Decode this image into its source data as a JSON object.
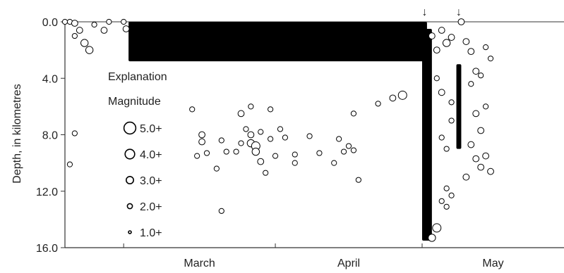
{
  "chart_data": {
    "type": "scatter",
    "title": "",
    "xlabel": "",
    "ylabel": "Depth, in kilometres",
    "x_axis": {
      "categories": [
        "March",
        "April",
        "May"
      ],
      "days_from_march_1": [
        0,
        31,
        61
      ],
      "range_days": [
        -12,
        90
      ]
    },
    "y_axis": {
      "ticks": [
        "0.0",
        "4.0",
        "8.0",
        "12.0",
        "16.0"
      ],
      "tick_values": [
        0,
        4,
        8,
        12,
        16
      ],
      "range": [
        0,
        16
      ],
      "inverted": true
    },
    "grid": false,
    "legend": {
      "placement": "left",
      "title_line1": "Explanation",
      "title_line2": "Magnitude",
      "items": [
        {
          "label": "5.0+",
          "magnitude": 5.0
        },
        {
          "label": "4.0+",
          "magnitude": 4.0
        },
        {
          "label": "3.0+",
          "magnitude": 3.0
        },
        {
          "label": "2.0+",
          "magnitude": 2.0
        },
        {
          "label": "1.0+",
          "magnitude": 1.0
        }
      ]
    },
    "annotations": [
      {
        "type": "arrow",
        "symbol": "↓",
        "day": 61.5
      },
      {
        "type": "arrow",
        "symbol": "↓",
        "day": 68.5
      }
    ],
    "dense_bands": [
      {
        "description": "shallow swarm",
        "day_start": 1,
        "day_end": 62,
        "depth_min": 0.0,
        "depth_max": 2.8
      },
      {
        "description": "deep column 1",
        "day_start": 61,
        "day_end": 63,
        "depth_min": 0.5,
        "depth_max": 15.5
      },
      {
        "description": "deep column 2",
        "day_start": 68,
        "day_end": 69,
        "depth_min": 3.0,
        "depth_max": 9.0
      }
    ],
    "points": [
      {
        "day": -12,
        "depth": 0.0,
        "mag": 2.0
      },
      {
        "day": -11,
        "depth": 0.0,
        "mag": 2.0
      },
      {
        "day": -10,
        "depth": 0.1,
        "mag": 2.5
      },
      {
        "day": -10,
        "depth": 1.0,
        "mag": 2.0
      },
      {
        "day": -9,
        "depth": 0.6,
        "mag": 2.5
      },
      {
        "day": -8,
        "depth": 1.5,
        "mag": 3.0
      },
      {
        "day": -7,
        "depth": 2.0,
        "mag": 3.0
      },
      {
        "day": -6,
        "depth": 0.2,
        "mag": 2.0
      },
      {
        "day": -4,
        "depth": 0.6,
        "mag": 2.5
      },
      {
        "day": -3,
        "depth": 0.0,
        "mag": 2.0
      },
      {
        "day": 0,
        "depth": 0.0,
        "mag": 2.0
      },
      {
        "day": 0.5,
        "depth": 0.5,
        "mag": 2.5
      },
      {
        "day": 14,
        "depth": 6.2,
        "mag": 2.0
      },
      {
        "day": 24,
        "depth": 6.5,
        "mag": 2.5
      },
      {
        "day": 26,
        "depth": 6.0,
        "mag": 2.0
      },
      {
        "day": 30,
        "depth": 6.2,
        "mag": 2.0
      },
      {
        "day": 47,
        "depth": 6.5,
        "mag": 2.0
      },
      {
        "day": 52,
        "depth": 5.8,
        "mag": 2.0
      },
      {
        "day": 55,
        "depth": 5.4,
        "mag": 2.5
      },
      {
        "day": 57,
        "depth": 5.2,
        "mag": 3.5
      },
      {
        "day": -10,
        "depth": 7.9,
        "mag": 2.0
      },
      {
        "day": -11,
        "depth": 10.1,
        "mag": 2.0
      },
      {
        "day": 16,
        "depth": 8.0,
        "mag": 2.5
      },
      {
        "day": 16,
        "depth": 8.5,
        "mag": 2.5
      },
      {
        "day": 15,
        "depth": 9.5,
        "mag": 2.0
      },
      {
        "day": 17,
        "depth": 9.3,
        "mag": 2.0
      },
      {
        "day": 19,
        "depth": 10.4,
        "mag": 2.0
      },
      {
        "day": 20,
        "depth": 8.4,
        "mag": 2.0
      },
      {
        "day": 21,
        "depth": 9.2,
        "mag": 2.0
      },
      {
        "day": 23,
        "depth": 9.2,
        "mag": 2.0
      },
      {
        "day": 24,
        "depth": 8.6,
        "mag": 2.0
      },
      {
        "day": 25,
        "depth": 7.6,
        "mag": 2.0
      },
      {
        "day": 26,
        "depth": 8.0,
        "mag": 2.5
      },
      {
        "day": 26,
        "depth": 8.6,
        "mag": 3.0
      },
      {
        "day": 27,
        "depth": 8.8,
        "mag": 3.5
      },
      {
        "day": 27,
        "depth": 9.2,
        "mag": 3.0
      },
      {
        "day": 28,
        "depth": 9.9,
        "mag": 2.5
      },
      {
        "day": 28,
        "depth": 7.8,
        "mag": 2.0
      },
      {
        "day": 29,
        "depth": 10.7,
        "mag": 2.0
      },
      {
        "day": 30,
        "depth": 8.3,
        "mag": 2.0
      },
      {
        "day": 31,
        "depth": 9.5,
        "mag": 2.0
      },
      {
        "day": 32,
        "depth": 7.6,
        "mag": 2.0
      },
      {
        "day": 33,
        "depth": 8.2,
        "mag": 2.0
      },
      {
        "day": 35,
        "depth": 9.4,
        "mag": 2.0
      },
      {
        "day": 35,
        "depth": 10.0,
        "mag": 2.0
      },
      {
        "day": 38,
        "depth": 8.1,
        "mag": 2.0
      },
      {
        "day": 40,
        "depth": 9.3,
        "mag": 2.0
      },
      {
        "day": 44,
        "depth": 8.3,
        "mag": 2.0
      },
      {
        "day": 45,
        "depth": 9.2,
        "mag": 2.0
      },
      {
        "day": 46,
        "depth": 8.8,
        "mag": 2.0
      },
      {
        "day": 47,
        "depth": 9.1,
        "mag": 2.0
      },
      {
        "day": 48,
        "depth": 11.2,
        "mag": 2.0
      },
      {
        "day": 20,
        "depth": 13.4,
        "mag": 2.0
      },
      {
        "day": 43,
        "depth": 10.0,
        "mag": 2.0
      },
      {
        "day": 66,
        "depth": 11.8,
        "mag": 2.0
      },
      {
        "day": 67,
        "depth": 12.3,
        "mag": 2.0
      },
      {
        "day": 64,
        "depth": 4.0,
        "mag": 2.0
      },
      {
        "day": 65,
        "depth": 5.0,
        "mag": 2.5
      },
      {
        "day": 63,
        "depth": 1.0,
        "mag": 2.5
      },
      {
        "day": 65,
        "depth": 0.6,
        "mag": 2.5
      },
      {
        "day": 66,
        "depth": 1.5,
        "mag": 3.0
      },
      {
        "day": 64,
        "depth": 2.0,
        "mag": 2.5
      },
      {
        "day": 67,
        "depth": 1.1,
        "mag": 2.5
      },
      {
        "day": 69,
        "depth": 0.0,
        "mag": 2.5
      },
      {
        "day": 70,
        "depth": 1.4,
        "mag": 2.5
      },
      {
        "day": 71,
        "depth": 2.1,
        "mag": 2.5
      },
      {
        "day": 72,
        "depth": 3.5,
        "mag": 2.5
      },
      {
        "day": 71,
        "depth": 4.4,
        "mag": 2.0
      },
      {
        "day": 73,
        "depth": 3.8,
        "mag": 2.0
      },
      {
        "day": 72,
        "depth": 6.5,
        "mag": 2.5
      },
      {
        "day": 73,
        "depth": 7.7,
        "mag": 2.5
      },
      {
        "day": 71,
        "depth": 8.7,
        "mag": 2.5
      },
      {
        "day": 72,
        "depth": 9.7,
        "mag": 2.5
      },
      {
        "day": 73,
        "depth": 10.3,
        "mag": 2.5
      },
      {
        "day": 70,
        "depth": 11.0,
        "mag": 2.5
      },
      {
        "day": 74,
        "depth": 9.5,
        "mag": 2.5
      },
      {
        "day": 75,
        "depth": 10.6,
        "mag": 2.5
      },
      {
        "day": 74,
        "depth": 6.0,
        "mag": 2.0
      },
      {
        "day": 66,
        "depth": 9.0,
        "mag": 2.0
      },
      {
        "day": 65,
        "depth": 8.2,
        "mag": 2.0
      },
      {
        "day": 67,
        "depth": 7.0,
        "mag": 2.0
      },
      {
        "day": 66,
        "depth": 13.1,
        "mag": 2.0
      },
      {
        "day": 65,
        "depth": 12.7,
        "mag": 2.0
      },
      {
        "day": 64,
        "depth": 14.6,
        "mag": 3.5
      },
      {
        "day": 63,
        "depth": 15.3,
        "mag": 3.0
      },
      {
        "day": 67,
        "depth": 5.7,
        "mag": 2.0
      },
      {
        "day": 74,
        "depth": 1.8,
        "mag": 2.0
      },
      {
        "day": 75,
        "depth": 2.6,
        "mag": 2.0
      }
    ]
  }
}
